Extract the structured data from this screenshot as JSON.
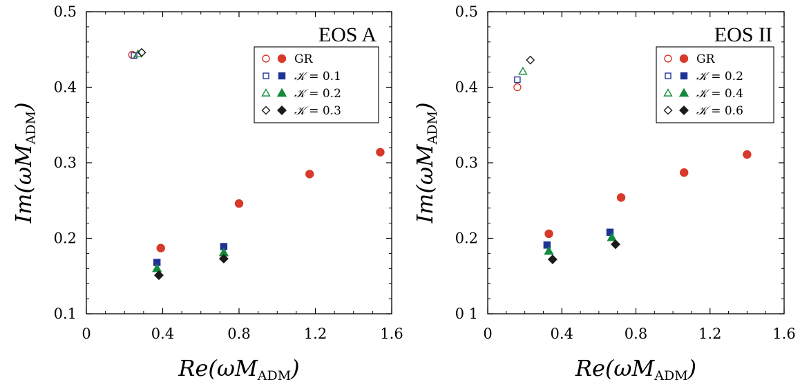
{
  "chart_data": [
    {
      "type": "scatter",
      "title": "EOS A",
      "xlabel": "Re(ωM_ADM)",
      "ylabel": "Im(ωM_ADM)",
      "xlim": [
        0,
        1.6
      ],
      "ylim": [
        0.1,
        0.5
      ],
      "xticks": [
        "0",
        "0.4",
        "0.8",
        "1.2",
        "1.6"
      ],
      "yticks": [
        "0.1",
        "0.2",
        "0.3",
        "0.4",
        "0.5"
      ],
      "legend_position": "top-right",
      "series": [
        {
          "name": "GR",
          "color": "#d7392b",
          "marker": "circle",
          "open": [
            [
              0.24,
              0.443
            ]
          ],
          "filled": [
            [
              0.39,
              0.187
            ],
            [
              0.8,
              0.246
            ],
            [
              1.17,
              0.285
            ],
            [
              1.54,
              0.314
            ]
          ]
        },
        {
          "name": "K = 0.1",
          "color": "#1f3396",
          "marker": "square",
          "open": [
            [
              0.25,
              0.442
            ]
          ],
          "filled": [
            [
              0.37,
              0.168
            ],
            [
              0.72,
              0.189
            ]
          ]
        },
        {
          "name": "K = 0.2",
          "color": "#128a3c",
          "marker": "triangle",
          "open": [
            [
              0.27,
              0.444
            ]
          ],
          "filled": [
            [
              0.37,
              0.16
            ],
            [
              0.72,
              0.181
            ]
          ]
        },
        {
          "name": "K = 0.3",
          "color": "#1a1a1a",
          "marker": "diamond",
          "open": [
            [
              0.29,
              0.446
            ]
          ],
          "filled": [
            [
              0.38,
              0.151
            ],
            [
              0.72,
              0.173
            ]
          ]
        }
      ]
    },
    {
      "type": "scatter",
      "title": "EOS II",
      "xlabel": "Re(ωM_ADM)",
      "ylabel": "Im(ωM_ADM)",
      "xlim": [
        0,
        1.6
      ],
      "ylim": [
        0.1,
        0.5
      ],
      "xticks": [
        "0",
        "0.4",
        "0.8",
        "1.2",
        "1.6"
      ],
      "yticks": [
        "0 1",
        "0.2",
        "0.3",
        "0.4",
        "0.5"
      ],
      "legend_position": "top-right",
      "series": [
        {
          "name": "GR",
          "color": "#d7392b",
          "marker": "circle",
          "open": [
            [
              0.16,
              0.4
            ]
          ],
          "filled": [
            [
              0.33,
              0.206
            ],
            [
              0.72,
              0.254
            ],
            [
              1.06,
              0.287
            ],
            [
              1.4,
              0.311
            ]
          ]
        },
        {
          "name": "K = 0.2",
          "color": "#1f3396",
          "marker": "square",
          "open": [
            [
              0.16,
              0.41
            ]
          ],
          "filled": [
            [
              0.32,
              0.191
            ],
            [
              0.66,
              0.208
            ]
          ]
        },
        {
          "name": "K = 0.4",
          "color": "#128a3c",
          "marker": "triangle",
          "open": [
            [
              0.19,
              0.421
            ]
          ],
          "filled": [
            [
              0.33,
              0.183
            ],
            [
              0.67,
              0.201
            ]
          ]
        },
        {
          "name": "K = 0.6",
          "color": "#1a1a1a",
          "marker": "diamond",
          "open": [
            [
              0.23,
              0.436
            ]
          ],
          "filled": [
            [
              0.35,
              0.172
            ],
            [
              0.69,
              0.192
            ]
          ]
        }
      ]
    }
  ]
}
